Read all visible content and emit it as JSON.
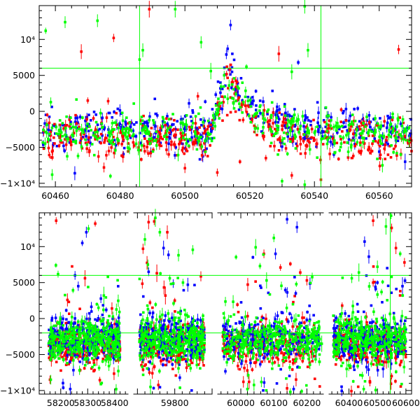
{
  "chart_data": [
    {
      "type": "scatter",
      "panel": "top",
      "title": "",
      "xlabel": "",
      "ylabel": "",
      "xlim": [
        60455,
        60570
      ],
      "ylim": [
        -10500,
        14700
      ],
      "grid": false,
      "x_ticks": [
        60460,
        60480,
        60500,
        60520,
        60540,
        60560
      ],
      "y_ticks": [
        {
          "value": 10000,
          "label": "10⁴"
        },
        {
          "value": 5000,
          "label": "5000"
        },
        {
          "value": 0,
          "label": "0"
        },
        {
          "value": -5000,
          "label": "−5000"
        },
        {
          "value": -10000,
          "label": "−1×10⁴"
        }
      ],
      "reference_lines": {
        "horizontal": [
          6000
        ],
        "vertical": [
          60486,
          60542
        ]
      },
      "band": {
        "baseline": -3000,
        "scatter": 1400
      },
      "flare": {
        "peak_x": 60513.5,
        "peak_y": 6500,
        "rise_days": 2.5,
        "decay_days": 7
      },
      "series": [
        {
          "color": "#0000ff",
          "points": [
            [
              60466,
              -8600
            ],
            [
              60513.2,
              8700
            ],
            [
              60514.1,
              12000
            ],
            [
              60512.8,
              7900
            ],
            [
              60530,
              -4900
            ],
            [
              60535,
              6800
            ],
            [
              60492,
              -3500
            ],
            [
              60546,
              -6000
            ],
            [
              60560,
              -5600
            ],
            [
              60568,
              -7000
            ],
            [
              60495,
              -4500
            ]
          ]
        },
        {
          "color": "#ff0000",
          "points": [
            [
              60468,
              8300
            ],
            [
              60470,
              1500
            ],
            [
              60478,
              10200
            ],
            [
              60489,
              14200
            ],
            [
              60516,
              3400
            ],
            [
              60529,
              8000
            ],
            [
              60566,
              8600
            ],
            [
              60510,
              -8500
            ],
            [
              60517,
              -7000
            ],
            [
              60525,
              -6500
            ],
            [
              60533,
              -8900
            ],
            [
              60542,
              -9500
            ],
            [
              60552,
              -6200
            ],
            [
              60500,
              -7900
            ],
            [
              60475,
              -7800
            ],
            [
              60459,
              -5600
            ],
            [
              60504,
              2100
            ]
          ]
        },
        {
          "color": "#00ff00",
          "points": [
            [
              60457,
              11200
            ],
            [
              60463,
              12400
            ],
            [
              60473,
              12600
            ],
            [
              60486,
              7200
            ],
            [
              60487,
              8500
            ],
            [
              60497,
              14200
            ],
            [
              60505,
              9600
            ],
            [
              60508,
              5600
            ],
            [
              60519,
              6200
            ],
            [
              60537,
              14600
            ],
            [
              60538,
              8500
            ],
            [
              60545,
              -2000
            ],
            [
              60459,
              -8800
            ],
            [
              60467,
              -6200
            ],
            [
              60477,
              -9000
            ],
            [
              60530,
              -9700
            ],
            [
              60537,
              -10200
            ],
            [
              60561,
              -7500
            ],
            [
              60533,
              5500
            ]
          ]
        }
      ]
    },
    {
      "type": "scatter",
      "panel": "bottom",
      "title": "",
      "xlabel": "",
      "ylabel": "",
      "ylim": [
        -10500,
        14700
      ],
      "grid": false,
      "segments": [
        {
          "xlim": [
            58120,
            58450
          ],
          "ticks": [
            58200,
            58300,
            58400
          ]
        },
        {
          "xlim": [
            59690,
            59900
          ],
          "ticks": [
            59800
          ]
        },
        {
          "xlim": [
            59930,
            60250
          ],
          "ticks": [
            60000,
            60100,
            60200
          ]
        },
        {
          "xlim": [
            60330,
            60620
          ],
          "ticks": [
            60400,
            60500,
            60600
          ]
        }
      ],
      "y_ticks": [
        {
          "value": 10000,
          "label": "10⁴"
        },
        {
          "value": 5000,
          "label": "5000"
        },
        {
          "value": 0,
          "label": "0"
        },
        {
          "value": -5000,
          "label": "−5000"
        },
        {
          "value": -10000,
          "label": "−1×10⁴"
        }
      ],
      "reference_lines": {
        "horizontal": [
          6000,
          -2000
        ],
        "vertical": [
          60545
        ]
      },
      "seasons": [
        [
          58155,
          58420
        ],
        [
          59705,
          59880
        ],
        [
          59945,
          60240
        ],
        [
          60345,
          60600
        ]
      ],
      "band": {
        "baseline": -3000,
        "scatter": 1500
      },
      "series": [
        {
          "color": "#0000ff",
          "points": [
            [
              58280,
              10500
            ],
            [
              58295,
              12000
            ],
            [
              58253,
              6000
            ],
            [
              58265,
              4500
            ],
            [
              59730,
              6500
            ],
            [
              59770,
              9800
            ],
            [
              59835,
              4700
            ],
            [
              60140,
              13800
            ],
            [
              60170,
              12700
            ],
            [
              60105,
              9000
            ],
            [
              60470,
              8600
            ],
            [
              60455,
              10700
            ],
            [
              60500,
              5000
            ],
            [
              60588,
              4500
            ],
            [
              60160,
              -9800
            ],
            [
              60520,
              -7000
            ]
          ]
        },
        {
          "color": "#ff0000",
          "points": [
            [
              58183,
              13600
            ],
            [
              58328,
              13200
            ],
            [
              58160,
              -8500
            ],
            [
              58290,
              5600
            ],
            [
              59730,
              13400
            ],
            [
              59745,
              13500
            ],
            [
              59780,
              12000
            ],
            [
              59715,
              9700
            ],
            [
              59752,
              6300
            ],
            [
              59775,
              3200
            ],
            [
              59800,
              2500
            ],
            [
              60070,
              9000
            ],
            [
              60150,
              7600
            ],
            [
              60180,
              6400
            ],
            [
              60120,
              7100
            ],
            [
              60200,
              5300
            ],
            [
              60485,
              13600
            ],
            [
              60550,
              12600
            ],
            [
              60565,
              9800
            ],
            [
              60595,
              7800
            ],
            [
              60485,
              5000
            ],
            [
              59740,
              -7600
            ],
            [
              60025,
              -8800
            ],
            [
              60140,
              -9700
            ],
            [
              60550,
              -8000
            ]
          ]
        },
        {
          "color": "#00ff00",
          "points": [
            [
              58163,
              -8500
            ],
            [
              58182,
              7400
            ],
            [
              58300,
              15000
            ],
            [
              58303,
              12500
            ],
            [
              58360,
              3200
            ],
            [
              58340,
              1500
            ],
            [
              59720,
              11000
            ],
            [
              59728,
              7500
            ],
            [
              59748,
              14000
            ],
            [
              59760,
              12000
            ],
            [
              59810,
              8800
            ],
            [
              59822,
              5000
            ],
            [
              60045,
              9900
            ],
            [
              60058,
              7300
            ],
            [
              60100,
              11200
            ],
            [
              60078,
              5300
            ],
            [
              60530,
              12800
            ],
            [
              60548,
              14300
            ],
            [
              60560,
              15200
            ],
            [
              60580,
              9000
            ],
            [
              60410,
              5600
            ],
            [
              60435,
              6400
            ],
            [
              60500,
              7200
            ],
            [
              60245,
              -3500
            ],
            [
              59735,
              -9500
            ],
            [
              60020,
              -9800
            ],
            [
              60150,
              -10200
            ],
            [
              60452,
              -9800
            ],
            [
              60392,
              -7000
            ]
          ]
        }
      ]
    }
  ]
}
